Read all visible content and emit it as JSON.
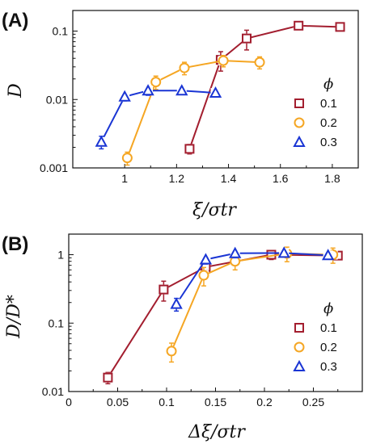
{
  "chart_data": [
    {
      "panel": "(A)",
      "type": "line",
      "title": "",
      "xlabel": "ξ/σtr",
      "ylabel": "D",
      "xlim": [
        0.8,
        1.9
      ],
      "ylim": [
        0.001,
        0.2
      ],
      "yscale": "log",
      "x_ticks": [
        1,
        1.2,
        1.4,
        1.6,
        1.8
      ],
      "x_tick_labels": [
        "1",
        "1.2",
        "1.4",
        "1.6",
        "1.8"
      ],
      "y_ticks": [
        0.001,
        0.01,
        0.1
      ],
      "y_tick_labels": [
        "0.001",
        "0.01",
        "0.1"
      ],
      "grid": false,
      "legend_title": "ϕ",
      "legend_position": "right",
      "series": [
        {
          "name": "0.1",
          "marker": "square",
          "color": "#a31e2f",
          "x": [
            1.25,
            1.37,
            1.47,
            1.67,
            1.83
          ],
          "y": [
            0.0019,
            0.038,
            0.078,
            0.12,
            0.115
          ],
          "err": [
            0.0003,
            0.012,
            0.025,
            0.012,
            0.01
          ]
        },
        {
          "name": "0.2",
          "marker": "circle",
          "color": "#f5a623",
          "x": [
            1.01,
            1.12,
            1.23,
            1.38,
            1.52
          ],
          "y": [
            0.0014,
            0.018,
            0.029,
            0.037,
            0.035
          ],
          "err": [
            0.0003,
            0.004,
            0.006,
            0.007,
            0.007
          ]
        },
        {
          "name": "0.3",
          "marker": "triangle",
          "color": "#1a35d4",
          "x": [
            0.91,
            1.0,
            1.09,
            1.22,
            1.35
          ],
          "y": [
            0.0024,
            0.011,
            0.0135,
            0.0135,
            0.0125
          ],
          "err": [
            0.0005,
            0.0015,
            0.002,
            0.0015,
            0.0015
          ]
        }
      ]
    },
    {
      "panel": "(B)",
      "type": "line",
      "title": "",
      "xlabel": "Δξ/σtr",
      "ylabel": "D/D*",
      "xlim": [
        0,
        0.3
      ],
      "ylim": [
        0.01,
        2
      ],
      "yscale": "log",
      "x_ticks": [
        0,
        0.05,
        0.1,
        0.15,
        0.2,
        0.25
      ],
      "x_tick_labels": [
        "0",
        "0.05",
        "0.1",
        "0.15",
        "0.2",
        "0.25"
      ],
      "y_ticks": [
        0.01,
        0.1,
        1
      ],
      "y_tick_labels": [
        "0.01",
        "0.1",
        "1"
      ],
      "grid": false,
      "legend_title": "ϕ",
      "legend_position": "right",
      "series": [
        {
          "name": "0.1",
          "marker": "square",
          "color": "#a31e2f",
          "x": [
            0.04,
            0.097,
            0.14,
            0.207,
            0.275
          ],
          "y": [
            0.016,
            0.31,
            0.66,
            1.0,
            0.97
          ],
          "err": [
            0.003,
            0.1,
            0.12,
            0.15,
            0.12
          ]
        },
        {
          "name": "0.2",
          "marker": "circle",
          "color": "#f5a623",
          "x": [
            0.105,
            0.138,
            0.17,
            0.223,
            0.27
          ],
          "y": [
            0.039,
            0.5,
            0.8,
            1.04,
            1.0
          ],
          "err": [
            0.012,
            0.15,
            0.2,
            0.25,
            0.25
          ]
        },
        {
          "name": "0.3",
          "marker": "triangle",
          "color": "#1a35d4",
          "x": [
            0.11,
            0.14,
            0.17,
            0.22,
            0.265
          ],
          "y": [
            0.19,
            0.85,
            1.05,
            1.06,
            0.98
          ],
          "err": [
            0.04,
            0.12,
            0.15,
            0.12,
            0.12
          ]
        }
      ]
    }
  ]
}
